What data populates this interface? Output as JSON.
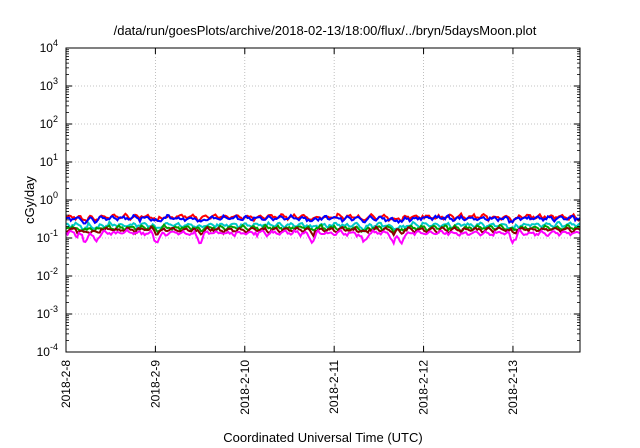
{
  "chart_data": {
    "type": "line",
    "title": "/data/run/goesPlots/archive/2018-02-13/18:00/flux/../bryn/5daysMoon.plot",
    "xlabel": "Coordinated Universal Time (UTC)",
    "ylabel": "cGy/day",
    "y_scale": "log",
    "ylim": [
      0.0001,
      10000
    ],
    "xlim": [
      "2018-02-08 00:00",
      "2018-02-13 18:00"
    ],
    "grid": true,
    "x_ticks": [
      "2018-2-8",
      "2018-2-9",
      "2018-2-10",
      "2018-2-11",
      "2018-2-12",
      "2018-2-13"
    ],
    "y_ticks": [
      {
        "value": 0.0001,
        "base": "10",
        "exp": "-4"
      },
      {
        "value": 0.001,
        "base": "10",
        "exp": "-3"
      },
      {
        "value": 0.01,
        "base": "10",
        "exp": "-2"
      },
      {
        "value": 0.1,
        "base": "10",
        "exp": "-1"
      },
      {
        "value": 1,
        "base": "10",
        "exp": "0"
      },
      {
        "value": 10,
        "base": "10",
        "exp": "1"
      },
      {
        "value": 100,
        "base": "10",
        "exp": "2"
      },
      {
        "value": 1000,
        "base": "10",
        "exp": "3"
      },
      {
        "value": 10000,
        "base": "10",
        "exp": "4"
      }
    ],
    "series": [
      {
        "color": "#ff0000",
        "level": 0.36,
        "dip_depth": 0.82
      },
      {
        "color": "#0000ff",
        "level": 0.33,
        "dip_depth": 0.8
      },
      {
        "color": "#00c8c8",
        "level": 0.22,
        "dip_depth": 0.8
      },
      {
        "color": "#00a000",
        "level": 0.185,
        "dip_depth": 0.82
      },
      {
        "color": "#8b0000",
        "level": 0.165,
        "dip_depth": 0.82
      },
      {
        "color": "#ff00ff",
        "level": 0.135,
        "dip_depth": 0.55
      }
    ],
    "dips": [
      "2018-02-08 05:00",
      "2018-02-08 08:00",
      "2018-02-09 00:30",
      "2018-02-09 12:00",
      "2018-02-10 18:00",
      "2018-02-11 08:00",
      "2018-02-11 16:00",
      "2018-02-11 18:00",
      "2018-02-13 00:00"
    ]
  }
}
